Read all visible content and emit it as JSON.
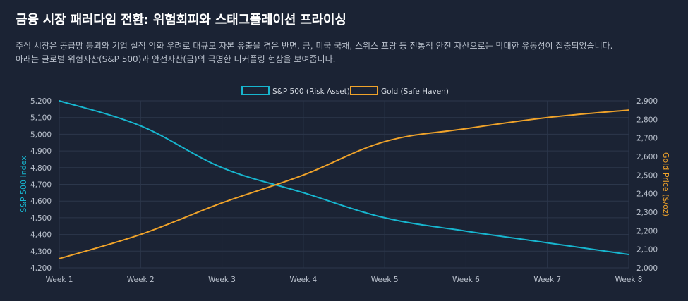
{
  "header": {
    "title": "금융 시장 패러다임 전환: 위험회피와 스태그플레이션 프라이싱",
    "subtitle": "주식 시장은 공급망 붕괴와 기업 실적 악화 우려로 대규모 자본 유출을 겪은 반면, 금, 미국 국채, 스위스 프랑 등 전통적 안전 자산으로는 막대한 유동성이 집중되었습니다. 아래는 글로벌 위험자산(S&P 500)과 안전자산(금)의 극명한 디커플링 현상을 보여줍니다."
  },
  "chart_data": {
    "type": "line",
    "categories": [
      "Week 1",
      "Week 2",
      "Week 3",
      "Week 4",
      "Week 5",
      "Week 6",
      "Week 7",
      "Week 8"
    ],
    "series": [
      {
        "name": "S&P 500 (Risk Asset)",
        "axis": "left",
        "color": "#17b6cf",
        "values": [
          5200,
          5050,
          4800,
          4650,
          4500,
          4420,
          4350,
          4280
        ]
      },
      {
        "name": "Gold (Safe Haven)",
        "axis": "right",
        "color": "#f0a32a",
        "values": [
          2050,
          2180,
          2350,
          2500,
          2680,
          2750,
          2810,
          2850
        ]
      }
    ],
    "y_left": {
      "label": "S&P 500 Index",
      "min": 4200,
      "max": 5200,
      "ticks": [
        "4,200",
        "4,300",
        "4,400",
        "4,500",
        "4,600",
        "4,700",
        "4,800",
        "4,900",
        "5,000",
        "5,100",
        "5,200"
      ]
    },
    "y_right": {
      "label": "Gold Price ($/oz)",
      "min": 2000,
      "max": 2900,
      "ticks": [
        "2,000",
        "2,100",
        "2,200",
        "2,300",
        "2,400",
        "2,500",
        "2,600",
        "2,700",
        "2,800",
        "2,900"
      ]
    },
    "legend": "top-center",
    "grid": true
  }
}
